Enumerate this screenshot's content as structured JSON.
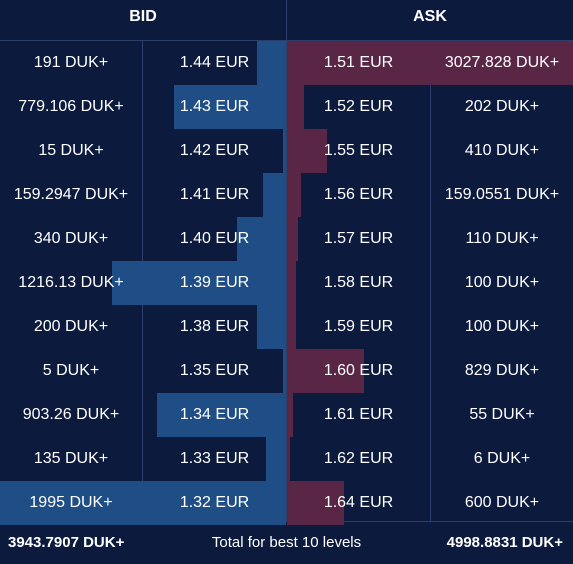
{
  "header": {
    "bid_label": "BID",
    "ask_label": "ASK"
  },
  "colors": {
    "background": "#0c1a3e",
    "bid_bar": "#1f4e86",
    "ask_bar": "#5a2646",
    "divider": "#2b3f6a"
  },
  "rows": [
    {
      "bid_qty": "191 DUK+",
      "bid_price": "1.44 EUR",
      "ask_price": "1.51 EUR",
      "ask_qty": "3027.828 DUK+",
      "bid_depth": 0.1,
      "ask_depth": 1.0
    },
    {
      "bid_qty": "779.106 DUK+",
      "bid_price": "1.43 EUR",
      "ask_price": "1.52 EUR",
      "ask_qty": "202 DUK+",
      "bid_depth": 0.39,
      "ask_depth": 0.06
    },
    {
      "bid_qty": "15 DUK+",
      "bid_price": "1.42 EUR",
      "ask_price": "1.55 EUR",
      "ask_qty": "410 DUK+",
      "bid_depth": 0.01,
      "ask_depth": 0.14
    },
    {
      "bid_qty": "159.2947 DUK+",
      "bid_price": "1.41 EUR",
      "ask_price": "1.56 EUR",
      "ask_qty": "159.0551 DUK+",
      "bid_depth": 0.08,
      "ask_depth": 0.05
    },
    {
      "bid_qty": "340 DUK+",
      "bid_price": "1.40 EUR",
      "ask_price": "1.57 EUR",
      "ask_qty": "110 DUK+",
      "bid_depth": 0.17,
      "ask_depth": 0.04
    },
    {
      "bid_qty": "1216.13 DUK+",
      "bid_price": "1.39 EUR",
      "ask_price": "1.58 EUR",
      "ask_qty": "100 DUK+",
      "bid_depth": 0.61,
      "ask_depth": 0.03
    },
    {
      "bid_qty": "200 DUK+",
      "bid_price": "1.38 EUR",
      "ask_price": "1.59 EUR",
      "ask_qty": "100 DUK+",
      "bid_depth": 0.1,
      "ask_depth": 0.03
    },
    {
      "bid_qty": "5 DUK+",
      "bid_price": "1.35 EUR",
      "ask_price": "1.60 EUR",
      "ask_qty": "829 DUK+",
      "bid_depth": 0.01,
      "ask_depth": 0.27
    },
    {
      "bid_qty": "903.26 DUK+",
      "bid_price": "1.34 EUR",
      "ask_price": "1.61 EUR",
      "ask_qty": "55 DUK+",
      "bid_depth": 0.45,
      "ask_depth": 0.02
    },
    {
      "bid_qty": "135 DUK+",
      "bid_price": "1.33 EUR",
      "ask_price": "1.62 EUR",
      "ask_qty": "6 DUK+",
      "bid_depth": 0.07,
      "ask_depth": 0.01
    },
    {
      "bid_qty": "1995 DUK+",
      "bid_price": "1.32 EUR",
      "ask_price": "1.64 EUR",
      "ask_qty": "600 DUK+",
      "bid_depth": 1.0,
      "ask_depth": 0.2
    }
  ],
  "footer": {
    "bid_total": "3943.7907 DUK+",
    "label": "Total for best 10 levels",
    "ask_total": "4998.8831 DUK+"
  }
}
